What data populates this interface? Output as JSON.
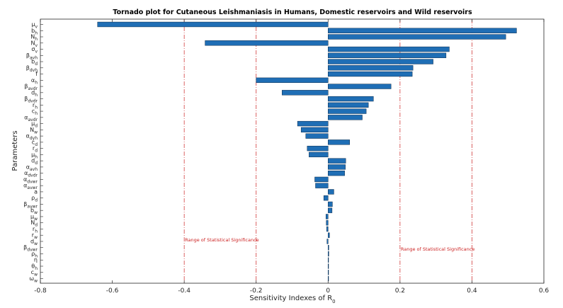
{
  "chart_data": {
    "type": "bar",
    "orientation": "horizontal",
    "title": "Tornado plot for Cutaneous Leishmaniasis in Humans, Domestic reservoirs and Wild reservoirs",
    "xlabel": "Sensitivity Indexes of R",
    "xlabel_sub": "0",
    "ylabel": "Parameters",
    "xlim": [
      -0.8,
      0.6
    ],
    "xticks": [
      -0.8,
      -0.6,
      -0.4,
      -0.2,
      0,
      0.2,
      0.4,
      0.6
    ],
    "xtick_labels": [
      "-0.8",
      "-0.6",
      "-0.4",
      "-0.2",
      "0",
      "0.2",
      "0.4",
      "0.6"
    ],
    "threshold_lines": [
      -0.4,
      -0.2,
      0.2,
      0.4
    ],
    "annotations": [
      {
        "text": "Range of Statistical Significance",
        "x": -0.4,
        "y": 35
      },
      {
        "text": "Range of Statistical Significance",
        "x": 0.2,
        "y": 36.5
      }
    ],
    "categories": [
      {
        "base": "μ",
        "sub": "v"
      },
      {
        "base": "b",
        "sub": "h"
      },
      {
        "base": "N",
        "sub": "h"
      },
      {
        "base": "N",
        "sub": "v"
      },
      {
        "base": "σ",
        "sub": "v"
      },
      {
        "base": "β",
        "sub": "avh"
      },
      {
        "base": "b",
        "sub": "d"
      },
      {
        "base": "β",
        "sub": "dvh"
      },
      {
        "base": "f",
        "sub": ""
      },
      {
        "base": "α",
        "sub": "h"
      },
      {
        "base": "β",
        "sub": "avdr"
      },
      {
        "base": "d",
        "sub": "h"
      },
      {
        "base": "β",
        "sub": "dvdr"
      },
      {
        "base": "r",
        "sub": "h"
      },
      {
        "base": "c",
        "sub": "h"
      },
      {
        "base": "α",
        "sub": "avdr"
      },
      {
        "base": "μ",
        "sub": "d"
      },
      {
        "base": "N",
        "sub": "w"
      },
      {
        "base": "α",
        "sub": "dyh"
      },
      {
        "base": "c",
        "sub": "d"
      },
      {
        "base": "r",
        "sub": "d"
      },
      {
        "base": "μ",
        "sub": "h"
      },
      {
        "base": "d",
        "sub": "d"
      },
      {
        "base": "α",
        "sub": "avh"
      },
      {
        "base": "α",
        "sub": "dvdr"
      },
      {
        "base": "α",
        "sub": "dvwr"
      },
      {
        "base": "α",
        "sub": "avwr"
      },
      {
        "base": "a",
        "sub": ""
      },
      {
        "base": "ρ",
        "sub": "d"
      },
      {
        "base": "β",
        "sub": "avwr"
      },
      {
        "base": "b",
        "sub": "w"
      },
      {
        "base": "μ",
        "sub": "w"
      },
      {
        "base": "N",
        "sub": "d"
      },
      {
        "base": "r",
        "sub": "h"
      },
      {
        "base": "r",
        "sub": "w"
      },
      {
        "base": "d",
        "sub": "w"
      },
      {
        "base": "β",
        "sub": "dvwr"
      },
      {
        "base": "ρ",
        "sub": "h"
      },
      {
        "base": "η",
        "sub": ""
      },
      {
        "base": "θ",
        "sub": "h"
      },
      {
        "base": "c",
        "sub": "w"
      },
      {
        "base": "ω",
        "sub": "w"
      }
    ],
    "values": [
      -0.641,
      0.524,
      0.494,
      -0.342,
      0.337,
      0.328,
      0.292,
      0.236,
      0.234,
      -0.2,
      0.175,
      -0.128,
      0.126,
      0.112,
      0.106,
      0.095,
      -0.085,
      -0.075,
      -0.062,
      0.06,
      -0.058,
      -0.053,
      0.049,
      0.048,
      0.046,
      -0.037,
      -0.035,
      0.016,
      -0.012,
      0.012,
      0.011,
      -0.006,
      -0.005,
      -0.004,
      0.004,
      -0.003,
      0.002,
      0.002,
      0.001,
      0.001,
      0.0008,
      0.0005
    ],
    "bar_color": "#1f6eb5",
    "bar_edge": "#0b2a4a",
    "threshold_color": "#d23c3c"
  }
}
